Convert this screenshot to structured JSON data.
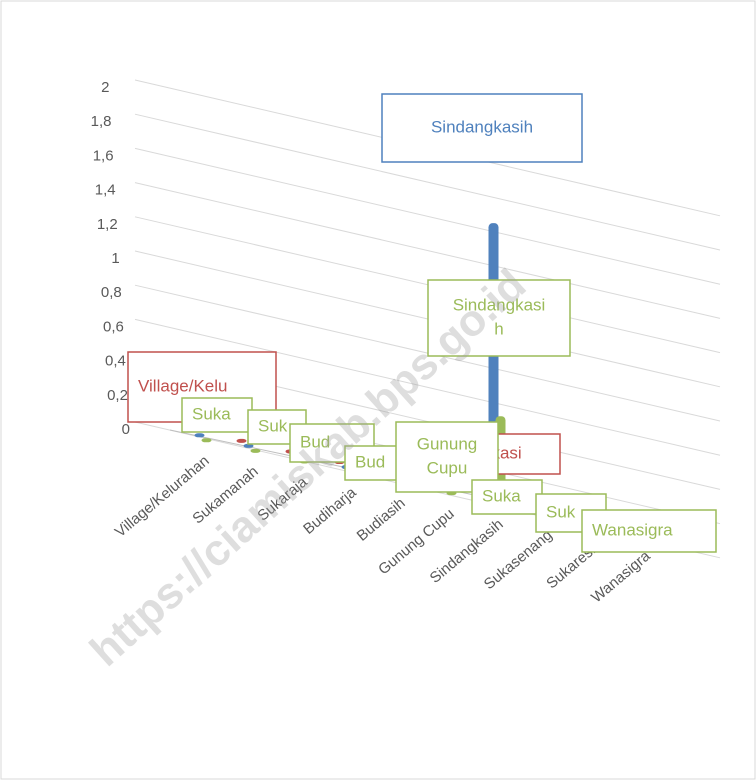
{
  "chart_data": {
    "type": "bar3d",
    "categories": [
      "Village/Kelurahan",
      "Sukamanah",
      "Sukaraja",
      "Budiharja",
      "Budiasih",
      "Gunung Cupu",
      "Sindangkasih",
      "Sukasenang",
      "Sukaresik",
      "Wanasigra"
    ],
    "series": [
      {
        "color": "#c0504d",
        "values": [
          0,
          0,
          0,
          0,
          0,
          0,
          0,
          0,
          0,
          0
        ]
      },
      {
        "color": "#4f81bd",
        "values": [
          0,
          0,
          0,
          0,
          0,
          0,
          1.6,
          0,
          0,
          0
        ]
      },
      {
        "color": "#9bbb59",
        "values": [
          0,
          0,
          0,
          0,
          0,
          0,
          0.5,
          0,
          0,
          0
        ]
      }
    ],
    "ylim": [
      0,
      2
    ],
    "yticks": [
      0,
      {
        "value": 0.2,
        "label": "0,2"
      },
      {
        "value": 0.4,
        "label": "0,4"
      },
      {
        "value": 0.6,
        "label": "0,6"
      },
      {
        "value": 0.8,
        "label": "0,8"
      },
      1,
      {
        "value": 1.2,
        "label": "1,2"
      },
      {
        "value": 1.4,
        "label": "1,4"
      },
      {
        "value": 1.6,
        "label": "1,6"
      },
      {
        "value": 1.8,
        "label": "1,8"
      },
      2
    ],
    "grid": true,
    "data_labels": [
      {
        "lines": [
          "Village/Kelu"
        ],
        "color": "#c0504d"
      },
      {
        "lines": [
          "Suka"
        ],
        "color": "#9bbb59"
      },
      {
        "lines": [
          "Suk"
        ],
        "color": "#9bbb59"
      },
      {
        "lines": [
          "Bud"
        ],
        "color": "#9bbb59"
      },
      {
        "lines": [
          "Bud"
        ],
        "color": "#9bbb59"
      },
      {
        "lines": [
          "gkasi"
        ],
        "color": "#c0504d"
      },
      {
        "lines": [
          "Gunung",
          "Cupu"
        ],
        "color": "#9bbb59"
      },
      {
        "lines": [
          "Suka"
        ],
        "color": "#9bbb59"
      },
      {
        "lines": [
          "Suk"
        ],
        "color": "#9bbb59"
      },
      {
        "lines": [
          "Wanasigra"
        ],
        "color": "#9bbb59"
      },
      {
        "lines": [
          "Sindangkasi",
          "h"
        ],
        "color": "#9bbb59"
      },
      {
        "lines": [
          "Sindangkasih"
        ],
        "color": "#4f81bd"
      }
    ],
    "watermark": "https://ciamiskab.bps.go.id"
  }
}
